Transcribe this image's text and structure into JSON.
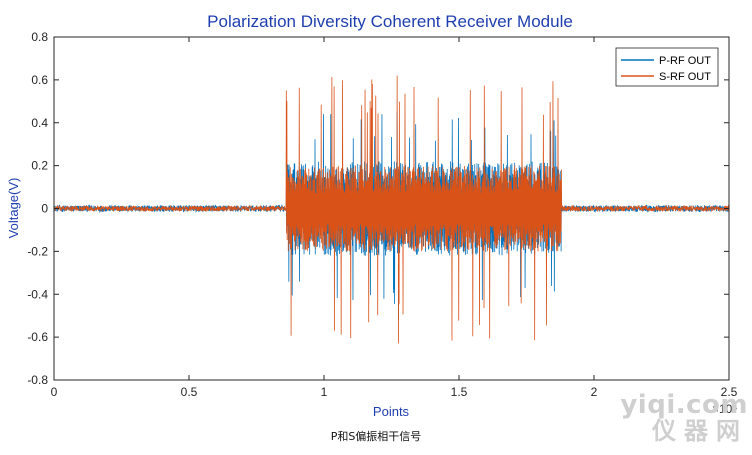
{
  "chart_data": {
    "type": "line",
    "title": "Polarization Diversity Coherent Receiver Module",
    "xlabel": "Points",
    "ylabel": "Voltage(V)",
    "x_exponent_label": "×10⁴",
    "xlim": [
      0,
      2.5
    ],
    "ylim": [
      -0.8,
      0.8
    ],
    "x_ticks": [
      0,
      0.5,
      1,
      1.5,
      2,
      2.5
    ],
    "x_tick_labels": [
      "0",
      "0.5",
      "1",
      "1.5",
      "2",
      "2.5"
    ],
    "y_ticks": [
      -0.8,
      -0.6,
      -0.4,
      -0.2,
      0,
      0.2,
      0.4,
      0.6,
      0.8
    ],
    "y_tick_labels": [
      "-0.8",
      "-0.6",
      "-0.4",
      "-0.2",
      "0",
      "0.2",
      "0.4",
      "0.6",
      "0.8"
    ],
    "grid": false,
    "legend_position": "top-right",
    "burst_region": {
      "x_start": 0.86,
      "x_end": 1.88
    },
    "series": [
      {
        "name": "P-RF OUT",
        "color": "#0072BD",
        "baseline_noise_amplitude": 0.015,
        "burst_peak_max": 0.45,
        "burst_peak_min": -0.52,
        "burst_typical_amplitude": 0.22
      },
      {
        "name": "S-RF OUT",
        "color": "#D95319",
        "baseline_noise_amplitude": 0.012,
        "burst_peak_max": 0.62,
        "burst_peak_min": -0.63,
        "burst_typical_amplitude": 0.2
      }
    ]
  },
  "caption": "P和S偏振相干信号",
  "watermark": {
    "top": "yiqi.com",
    "bottom": "仪器网"
  }
}
